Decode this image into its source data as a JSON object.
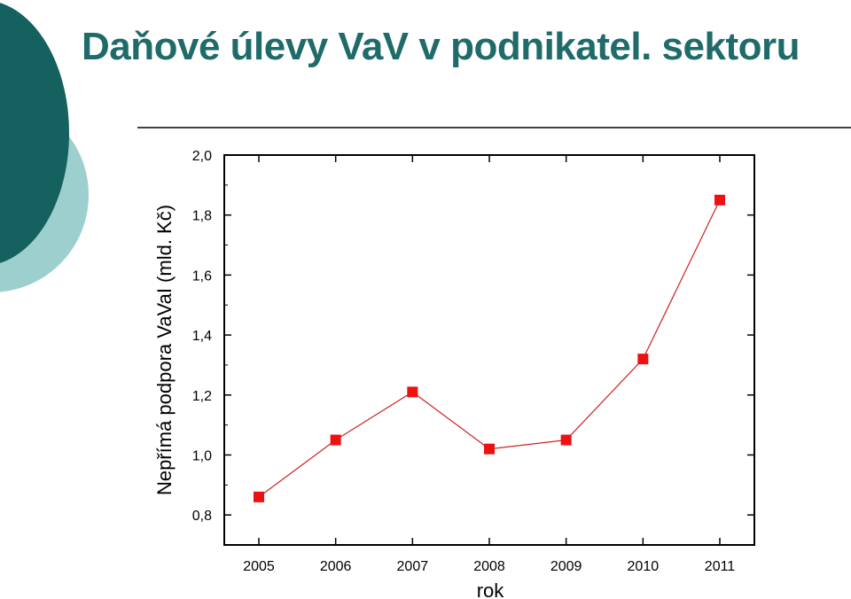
{
  "slide": {
    "title": "Daňové úlevy VaV v podnikatel. sektoru"
  },
  "colors": {
    "title": "#1f6b6a",
    "deco_dark": "#14615f",
    "deco_light": "#9ccfcd",
    "marker": "#ee1111",
    "line": "#cc2222"
  },
  "chart_data": {
    "type": "line",
    "xlabel": "rok",
    "ylabel": "Nepřímá podpora VaVaI (mld. Kč)",
    "x": [
      2005,
      2006,
      2007,
      2008,
      2009,
      2010,
      2011
    ],
    "x_tick_labels": [
      "2005",
      "2006",
      "2007",
      "2008",
      "2009",
      "2010",
      "2011"
    ],
    "series": [
      {
        "values": [
          0.86,
          1.05,
          1.21,
          1.02,
          1.05,
          1.32,
          1.85
        ]
      }
    ],
    "ylim": [
      0.7,
      2.0
    ],
    "y_ticks": [
      0.8,
      1.0,
      1.2,
      1.4,
      1.6,
      1.8,
      2.0
    ],
    "y_tick_labels": [
      "0,8",
      "1,0",
      "1,2",
      "1,4",
      "1,6",
      "1,8",
      "2,0"
    ],
    "grid": false,
    "legend": "none",
    "marker": "square"
  }
}
